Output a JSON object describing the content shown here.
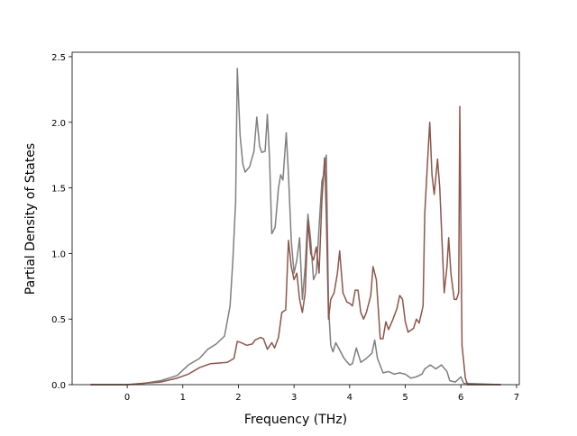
{
  "chart_data": {
    "type": "line",
    "xlabel": "Frequency (THz)",
    "ylabel": "Partial Density of States",
    "xlim": [
      -0.99,
      7.05
    ],
    "ylim": [
      0,
      2.534
    ],
    "xticks": [
      0,
      1,
      2,
      3,
      4,
      5,
      6,
      7
    ],
    "yticks": [
      {
        "value": 0,
        "label": "0.0"
      },
      0.5,
      {
        "value": 1,
        "label": "1.0"
      },
      1.5,
      {
        "value": 2,
        "label": "2.0"
      },
      2.5
    ],
    "series": [
      {
        "color": "#7f7f7f",
        "x": [
          -0.66,
          0,
          0.3,
          0.6,
          0.9,
          1.1,
          1.3,
          1.45,
          1.6,
          1.75,
          1.85,
          1.9,
          1.95,
          1.98,
          2.03,
          2.08,
          2.12,
          2.2,
          2.28,
          2.33,
          2.38,
          2.42,
          2.48,
          2.52,
          2.56,
          2.6,
          2.66,
          2.72,
          2.76,
          2.8,
          2.86,
          2.9,
          2.95,
          3.0,
          3.05,
          3.1,
          3.15,
          3.2,
          3.25,
          3.3,
          3.35,
          3.4,
          3.45,
          3.5,
          3.55,
          3.58,
          3.62,
          3.66,
          3.7,
          3.75,
          3.8,
          3.9,
          4.0,
          4.05,
          4.12,
          4.2,
          4.3,
          4.4,
          4.45,
          4.5,
          4.6,
          4.7,
          4.8,
          4.9,
          5.0,
          5.1,
          5.2,
          5.3,
          5.35,
          5.45,
          5.55,
          5.65,
          5.75,
          5.8,
          5.9,
          6.0,
          6.05,
          6.72
        ],
        "values": [
          0,
          0,
          0.01,
          0.03,
          0.07,
          0.15,
          0.2,
          0.27,
          0.31,
          0.37,
          0.6,
          0.95,
          1.4,
          2.41,
          1.9,
          1.68,
          1.62,
          1.66,
          1.78,
          2.04,
          1.82,
          1.77,
          1.78,
          2.06,
          1.72,
          1.15,
          1.2,
          1.5,
          1.6,
          1.56,
          1.92,
          1.6,
          1.1,
          0.85,
          0.95,
          1.12,
          0.65,
          0.9,
          1.3,
          1.1,
          0.8,
          0.85,
          1.2,
          1.55,
          1.63,
          1.75,
          0.6,
          0.3,
          0.25,
          0.32,
          0.28,
          0.2,
          0.15,
          0.16,
          0.28,
          0.17,
          0.2,
          0.24,
          0.34,
          0.2,
          0.09,
          0.1,
          0.08,
          0.09,
          0.08,
          0.05,
          0.06,
          0.08,
          0.12,
          0.15,
          0.12,
          0.15,
          0.1,
          0.03,
          0.02,
          0.06,
          0.01,
          0
        ]
      },
      {
        "color": "#8c564b",
        "x": [
          -0.66,
          0,
          0.3,
          0.6,
          0.9,
          1.1,
          1.3,
          1.5,
          1.8,
          1.92,
          1.98,
          2.05,
          2.15,
          2.25,
          2.3,
          2.4,
          2.45,
          2.52,
          2.6,
          2.65,
          2.72,
          2.78,
          2.85,
          2.9,
          2.95,
          3.0,
          3.05,
          3.1,
          3.15,
          3.2,
          3.25,
          3.3,
          3.35,
          3.4,
          3.45,
          3.5,
          3.55,
          3.58,
          3.62,
          3.66,
          3.72,
          3.78,
          3.82,
          3.88,
          3.95,
          4.0,
          4.05,
          4.1,
          4.15,
          4.2,
          4.25,
          4.3,
          4.38,
          4.42,
          4.48,
          4.55,
          4.6,
          4.65,
          4.7,
          4.78,
          4.85,
          4.9,
          4.95,
          5.0,
          5.05,
          5.15,
          5.2,
          5.25,
          5.32,
          5.35,
          5.4,
          5.44,
          5.48,
          5.52,
          5.58,
          5.62,
          5.66,
          5.7,
          5.75,
          5.78,
          5.82,
          5.88,
          5.92,
          5.96,
          5.98,
          6.02,
          6.08,
          6.12,
          6.72
        ],
        "values": [
          0,
          0,
          0.01,
          0.02,
          0.05,
          0.08,
          0.13,
          0.16,
          0.17,
          0.2,
          0.33,
          0.32,
          0.3,
          0.31,
          0.34,
          0.36,
          0.35,
          0.27,
          0.32,
          0.28,
          0.36,
          0.55,
          0.57,
          1.1,
          0.9,
          0.8,
          0.85,
          0.65,
          0.55,
          0.7,
          1.25,
          1.0,
          0.95,
          1.05,
          0.85,
          1.4,
          1.73,
          1.3,
          0.5,
          0.65,
          0.7,
          0.85,
          1.02,
          0.7,
          0.63,
          0.62,
          0.6,
          0.72,
          0.72,
          0.55,
          0.5,
          0.55,
          0.68,
          0.9,
          0.8,
          0.35,
          0.35,
          0.48,
          0.42,
          0.5,
          0.58,
          0.68,
          0.65,
          0.48,
          0.4,
          0.43,
          0.5,
          0.47,
          0.6,
          1.3,
          1.7,
          2.0,
          1.6,
          1.45,
          1.72,
          1.5,
          1.1,
          0.7,
          0.9,
          1.12,
          0.85,
          0.65,
          0.65,
          0.7,
          2.12,
          0.3,
          0.05,
          0,
          0
        ]
      }
    ]
  }
}
